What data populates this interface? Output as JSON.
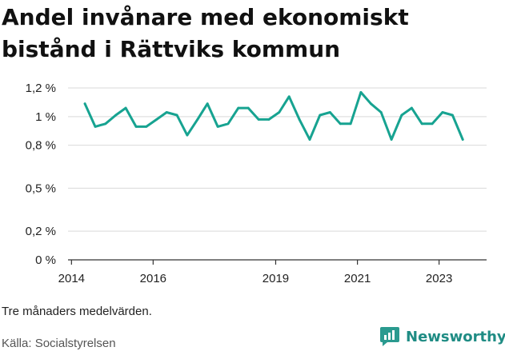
{
  "title": "Andel invånare med ekonomiskt bistånd i Rättviks kommun",
  "note": "Tre månaders medelvärden.",
  "source": "Källa: Socialstyrelsen",
  "logo_text": "Newsworthy",
  "colors": {
    "line": "#17a391",
    "grid": "#d9d9d9",
    "axis": "#333333",
    "logo": "#1f8c84"
  },
  "chart_data": {
    "type": "line",
    "title": "Andel invånare med ekonomiskt bistånd i Rättviks kommun",
    "xlabel": "",
    "ylabel": "",
    "y_tick_values": [
      0,
      0.2,
      0.5,
      0.8,
      1.0,
      1.2
    ],
    "y_tick_labels": [
      "0 %",
      "0,2 %",
      "0,5 %",
      "0,8 %",
      "1 %",
      "1,2 %"
    ],
    "x_ticks": [
      {
        "date": "2014-01-01",
        "label": "2014"
      },
      {
        "date": "2016-01-01",
        "label": "2016"
      },
      {
        "date": "2019-01-01",
        "label": "2019"
      },
      {
        "date": "2021-01-01",
        "label": "2021"
      },
      {
        "date": "2023-01-01",
        "label": "2023"
      }
    ],
    "x_range": [
      "2013-12-01",
      "2024-03-01"
    ],
    "ylim": [
      0,
      1.25
    ],
    "grid": true,
    "series": [
      {
        "x": [
          "2014-05",
          "2014-08",
          "2014-11",
          "2015-02",
          "2015-05",
          "2015-08",
          "2015-11",
          "2016-02",
          "2016-05",
          "2016-08",
          "2016-11",
          "2017-02",
          "2017-05",
          "2017-08",
          "2017-11",
          "2018-02",
          "2018-05",
          "2018-08",
          "2018-11",
          "2019-02",
          "2019-05",
          "2019-08",
          "2019-11",
          "2020-02",
          "2020-05",
          "2020-08",
          "2020-11",
          "2021-02",
          "2021-05",
          "2021-08",
          "2021-11",
          "2022-02",
          "2022-05",
          "2022-08",
          "2022-11",
          "2023-02",
          "2023-05",
          "2023-08"
        ],
        "values": [
          1.09,
          0.93,
          0.95,
          1.01,
          1.06,
          0.93,
          0.93,
          0.98,
          1.03,
          1.01,
          0.87,
          0.98,
          1.09,
          0.93,
          0.95,
          1.06,
          1.06,
          0.98,
          0.98,
          1.03,
          1.14,
          0.98,
          0.84,
          1.01,
          1.03,
          0.95,
          0.95,
          1.17,
          1.09,
          1.03,
          0.84,
          1.01,
          1.06,
          0.95,
          0.95,
          1.03,
          1.01,
          0.84
        ]
      }
    ]
  }
}
